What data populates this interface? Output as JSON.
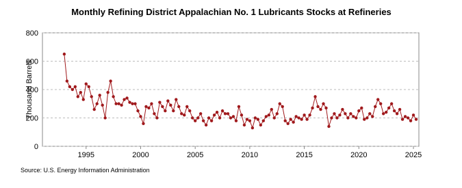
{
  "chart_data": {
    "type": "line",
    "title": "Monthly Refining District Appalachian No. 1 Lubricants Stocks at Refineries",
    "y_label": "Thousand Barrels",
    "source": "Source: U.S. Energy Information Administration",
    "color": "#a0191c",
    "grid": true,
    "xlim": [
      1991,
      2025.5
    ],
    "xticks": [
      1995,
      2000,
      2005,
      2010,
      2015,
      2020,
      2025
    ],
    "ylim": [
      0,
      800
    ],
    "yticks": [
      0,
      200,
      400,
      600,
      800
    ],
    "x": [
      1993,
      1993.25,
      1993.5,
      1993.75,
      1994,
      1994.25,
      1994.5,
      1994.75,
      1995,
      1995.25,
      1995.5,
      1995.75,
      1996,
      1996.25,
      1996.5,
      1996.75,
      1997,
      1997.25,
      1997.5,
      1997.75,
      1998,
      1998.25,
      1998.5,
      1998.75,
      1999,
      1999.25,
      1999.5,
      1999.75,
      2000,
      2000.25,
      2000.5,
      2000.75,
      2001,
      2001.25,
      2001.5,
      2001.75,
      2002,
      2002.25,
      2002.5,
      2002.75,
      2003,
      2003.25,
      2003.5,
      2003.75,
      2004,
      2004.25,
      2004.5,
      2004.75,
      2005,
      2005.25,
      2005.5,
      2005.75,
      2006,
      2006.25,
      2006.5,
      2006.75,
      2007,
      2007.25,
      2007.5,
      2007.75,
      2008,
      2008.25,
      2008.5,
      2008.75,
      2009,
      2009.25,
      2009.5,
      2009.75,
      2010,
      2010.25,
      2010.5,
      2010.75,
      2011,
      2011.25,
      2011.5,
      2011.75,
      2012,
      2012.25,
      2012.5,
      2012.75,
      2013,
      2013.25,
      2013.5,
      2013.75,
      2014,
      2014.25,
      2014.5,
      2014.75,
      2015,
      2015.25,
      2015.5,
      2015.75,
      2016,
      2016.25,
      2016.5,
      2016.75,
      2017,
      2017.25,
      2017.5,
      2017.75,
      2018,
      2018.25,
      2018.5,
      2018.75,
      2019,
      2019.25,
      2019.5,
      2019.75,
      2020,
      2020.25,
      2020.5,
      2020.75,
      2021,
      2021.25,
      2021.5,
      2021.75,
      2022,
      2022.25,
      2022.5,
      2022.75,
      2023,
      2023.25,
      2023.5,
      2023.75,
      2024,
      2024.25,
      2024.5,
      2024.75,
      2025,
      2025.25
    ],
    "values": [
      650,
      460,
      420,
      400,
      420,
      350,
      380,
      330,
      440,
      420,
      350,
      260,
      300,
      360,
      290,
      200,
      380,
      460,
      350,
      300,
      300,
      290,
      330,
      340,
      310,
      300,
      300,
      250,
      210,
      160,
      280,
      270,
      300,
      230,
      200,
      310,
      280,
      250,
      320,
      290,
      250,
      330,
      280,
      230,
      220,
      280,
      250,
      200,
      180,
      200,
      230,
      180,
      150,
      200,
      180,
      220,
      240,
      200,
      250,
      230,
      230,
      200,
      210,
      180,
      280,
      220,
      150,
      190,
      180,
      130,
      200,
      190,
      150,
      180,
      210,
      220,
      260,
      200,
      230,
      300,
      280,
      180,
      160,
      190,
      170,
      210,
      200,
      190,
      220,
      190,
      220,
      270,
      350,
      280,
      260,
      300,
      270,
      140,
      200,
      230,
      200,
      220,
      260,
      230,
      200,
      230,
      210,
      200,
      250,
      270,
      190,
      200,
      230,
      210,
      280,
      330,
      300,
      230,
      240,
      270,
      300,
      250,
      230,
      260,
      190,
      210,
      200,
      180,
      220,
      190
    ]
  }
}
